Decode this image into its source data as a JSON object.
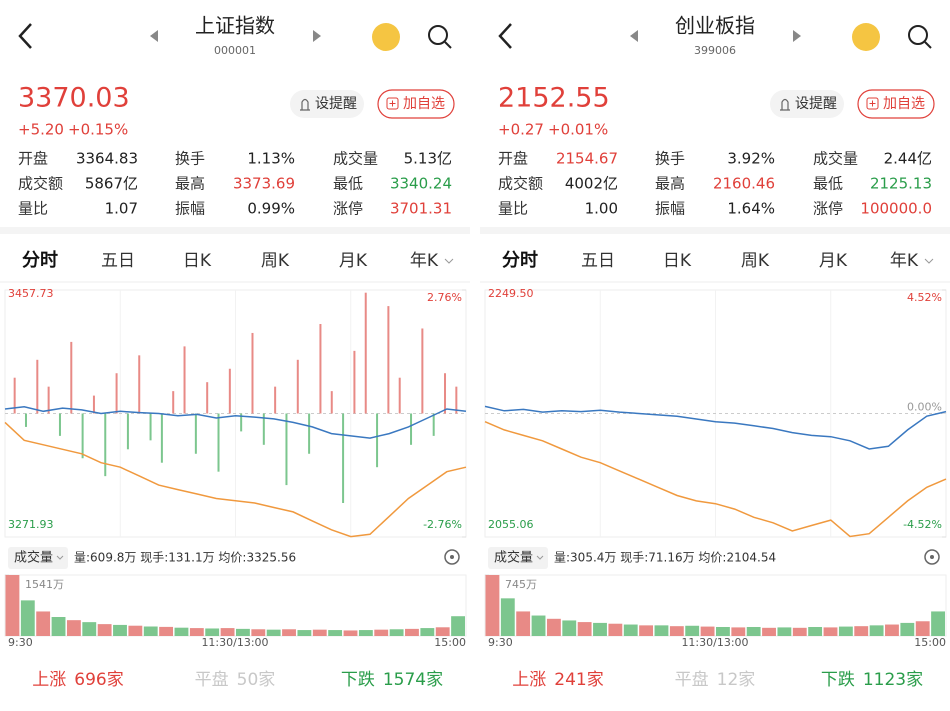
{
  "panels": [
    {
      "title": "上证指数",
      "code": "000001",
      "price": "3370.03",
      "change": "+5.20",
      "change_pct": "+0.15%",
      "alert": "设提醒",
      "add": "加自选",
      "stats": [
        {
          "label": "开盘",
          "value": "3364.83"
        },
        {
          "label": "换手",
          "value": "1.13%"
        },
        {
          "label": "成交量",
          "value": "5.13亿"
        },
        {
          "label": "成交额",
          "value": "5867亿"
        },
        {
          "label": "最高",
          "value": "3373.69",
          "color": "#e0403a"
        },
        {
          "label": "最低",
          "value": "3340.24",
          "color": "#2a9d4a"
        },
        {
          "label": "量比",
          "value": "1.07"
        },
        {
          "label": "振幅",
          "value": "0.99%"
        },
        {
          "label": "涨停",
          "value": "3701.31",
          "color": "#e0403a"
        }
      ],
      "tabs": [
        "分时",
        "五日",
        "日K",
        "周K",
        "月K",
        "年K"
      ],
      "chart": {
        "price_ticks": [
          "3457.73",
          "3271.93"
        ],
        "pct_ticks": [
          {
            "value": 2.76,
            "label": "2.76%"
          },
          {
            "value": -2.76,
            "label": "-2.76%"
          }
        ],
        "index_line": {
          "color": "#3a78c0",
          "values": [
            0.1,
            0.15,
            0.05,
            0.12,
            0.08,
            0.0,
            0.05,
            0.02,
            0.0,
            -0.05,
            -0.02,
            -0.1,
            -0.05,
            -0.08,
            -0.12,
            -0.2,
            -0.3,
            -0.45,
            -0.5,
            -0.55,
            -0.45,
            -0.3,
            -0.1,
            0.1,
            0.05
          ]
        },
        "avg_line": {
          "color": "#f0993e",
          "values": [
            -0.2,
            -0.6,
            -0.7,
            -0.8,
            -0.9,
            -1.1,
            -1.2,
            -1.4,
            -1.6,
            -1.7,
            -1.8,
            -1.9,
            -1.95,
            -2.0,
            -2.1,
            -2.2,
            -2.4,
            -2.6,
            -2.75,
            -2.7,
            -2.3,
            -1.9,
            -1.6,
            -1.3,
            -1.2
          ]
        },
        "bars": [
          0.8,
          -0.3,
          1.2,
          0.6,
          -0.5,
          1.6,
          -1.0,
          0.4,
          -1.4,
          0.9,
          -0.8,
          1.3,
          -0.6,
          -1.1,
          0.5,
          1.5,
          -0.9,
          0.7,
          -1.3,
          1.0,
          -0.4,
          1.8,
          -0.7,
          0.6,
          -1.6,
          1.2,
          -0.9,
          2.0,
          0.5,
          -2.0,
          1.4,
          2.7,
          -1.2,
          2.4,
          0.8,
          -0.7,
          1.9,
          -0.5,
          0.9,
          0.6
        ]
      },
      "volume": {
        "label": "成交量",
        "info": "量:609.8万  现手:131.1万  均价:3325.56",
        "max_tick": {
          "value": 1541,
          "label": "1541万"
        },
        "values": [
          1541,
          900,
          620,
          480,
          400,
          350,
          300,
          280,
          260,
          240,
          230,
          210,
          200,
          190,
          200,
          180,
          170,
          160,
          170,
          150,
          160,
          150,
          140,
          150,
          160,
          170,
          180,
          200,
          220,
          500
        ]
      },
      "times": [
        "9:30",
        "11:30/13:00",
        "15:00"
      ],
      "breadth": [
        {
          "label": "上涨",
          "value": "696家"
        },
        {
          "label": "平盘",
          "value": "50家"
        },
        {
          "label": "下跌",
          "value": "1574家"
        }
      ]
    },
    {
      "title": "创业板指",
      "code": "399006",
      "price": "2152.55",
      "change": "+0.27",
      "change_pct": "+0.01%",
      "alert": "设提醒",
      "add": "加自选",
      "stats": [
        {
          "label": "开盘",
          "value": "2154.67",
          "color": "#e0403a"
        },
        {
          "label": "换手",
          "value": "3.92%"
        },
        {
          "label": "成交量",
          "value": "2.44亿"
        },
        {
          "label": "成交额",
          "value": "4002亿"
        },
        {
          "label": "最高",
          "value": "2160.46",
          "color": "#e0403a"
        },
        {
          "label": "最低",
          "value": "2125.13",
          "color": "#2a9d4a"
        },
        {
          "label": "量比",
          "value": "1.00"
        },
        {
          "label": "振幅",
          "value": "1.64%"
        },
        {
          "label": "涨停",
          "value": "100000.0",
          "color": "#e0403a"
        }
      ],
      "tabs": [
        "分时",
        "五日",
        "日K",
        "周K",
        "月K",
        "年K"
      ],
      "chart": {
        "price_ticks": [
          "2249.50",
          "2055.06"
        ],
        "pct_ticks": [
          {
            "value": 4.52,
            "label": "4.52%"
          },
          {
            "value": 0,
            "label": "0.00%"
          },
          {
            "value": -4.52,
            "label": "-4.52%"
          }
        ],
        "index_line": {
          "color": "#3a78c0",
          "values": [
            0.26,
            0.1,
            0.15,
            0.05,
            0.1,
            0.07,
            0.12,
            0.05,
            0.0,
            -0.05,
            -0.1,
            -0.2,
            -0.3,
            -0.35,
            -0.45,
            -0.55,
            -0.7,
            -0.8,
            -0.85,
            -1.0,
            -1.3,
            -1.2,
            -0.6,
            -0.1,
            0.07
          ]
        },
        "avg_line": {
          "color": "#f0993e",
          "values": [
            -0.3,
            -0.6,
            -0.8,
            -1.0,
            -1.3,
            -1.6,
            -1.8,
            -2.1,
            -2.4,
            -2.7,
            -3.0,
            -3.2,
            -3.3,
            -3.5,
            -3.8,
            -4.0,
            -4.3,
            -4.1,
            -3.9,
            -4.5,
            -4.4,
            -3.8,
            -3.2,
            -2.7,
            -2.4
          ]
        },
        "bars": []
      },
      "volume": {
        "label": "成交量",
        "info": "量:305.4万  现手:71.16万  均价:2104.54",
        "max_tick": {
          "value": 745,
          "label": "745万"
        },
        "values": [
          745,
          460,
          300,
          250,
          210,
          190,
          170,
          160,
          150,
          140,
          130,
          130,
          120,
          125,
          115,
          110,
          105,
          110,
          100,
          105,
          100,
          110,
          105,
          115,
          120,
          130,
          140,
          160,
          180,
          300
        ]
      },
      "times": [
        "9:30",
        "11:30/13:00",
        "15:00"
      ],
      "breadth": [
        {
          "label": "上涨",
          "value": "241家"
        },
        {
          "label": "平盘",
          "value": "12家"
        },
        {
          "label": "下跌",
          "value": "1123家"
        }
      ]
    }
  ]
}
